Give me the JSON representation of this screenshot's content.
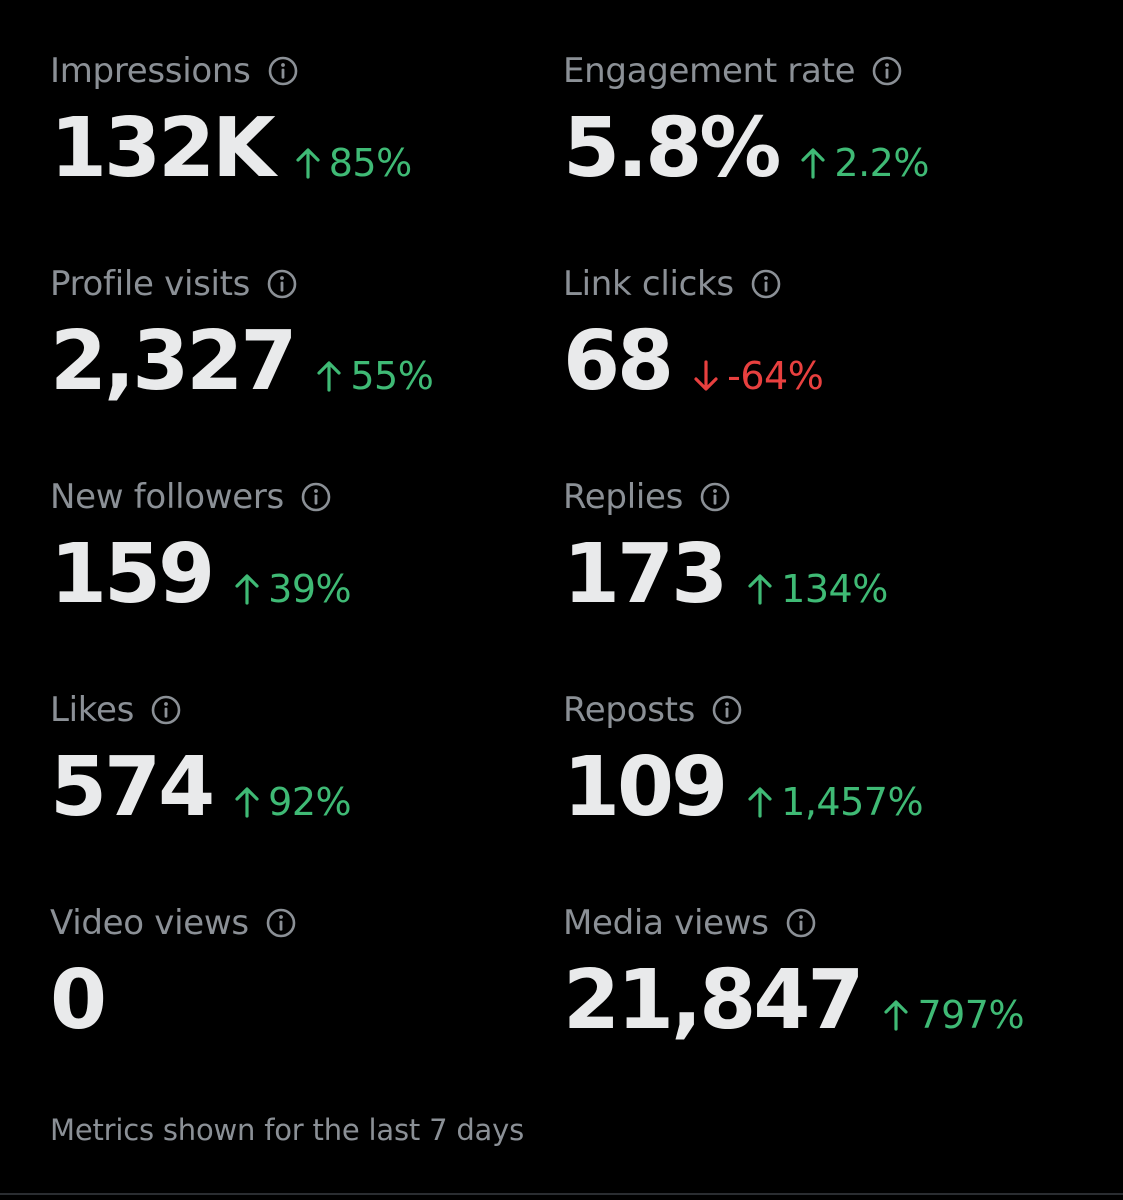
{
  "metrics": [
    {
      "label": "Impressions",
      "value": "132K",
      "change": "85%",
      "direction": "up"
    },
    {
      "label": "Engagement rate",
      "value": "5.8%",
      "change": "2.2%",
      "direction": "up"
    },
    {
      "label": "Profile visits",
      "value": "2,327",
      "change": "55%",
      "direction": "up"
    },
    {
      "label": "Link clicks",
      "value": "68",
      "change": "-64%",
      "direction": "down"
    },
    {
      "label": "New followers",
      "value": "159",
      "change": "39%",
      "direction": "up"
    },
    {
      "label": "Replies",
      "value": "173",
      "change": "134%",
      "direction": "up"
    },
    {
      "label": "Likes",
      "value": "574",
      "change": "92%",
      "direction": "up"
    },
    {
      "label": "Reposts",
      "value": "109",
      "change": "1,457%",
      "direction": "up"
    },
    {
      "label": "Video views",
      "value": "0",
      "change": "",
      "direction": "none"
    },
    {
      "label": "Media views",
      "value": "21,847",
      "change": "797%",
      "direction": "up"
    }
  ],
  "footer": {
    "note": "Metrics shown for the last 7 days"
  },
  "icons": {
    "info": "info-circle-icon",
    "up": "arrow-up-icon",
    "down": "arrow-down-icon"
  },
  "colors": {
    "background": "#000000",
    "label": "#8b9096",
    "value": "#e9eaeb",
    "positive": "#3fba75",
    "negative": "#e8403f"
  }
}
